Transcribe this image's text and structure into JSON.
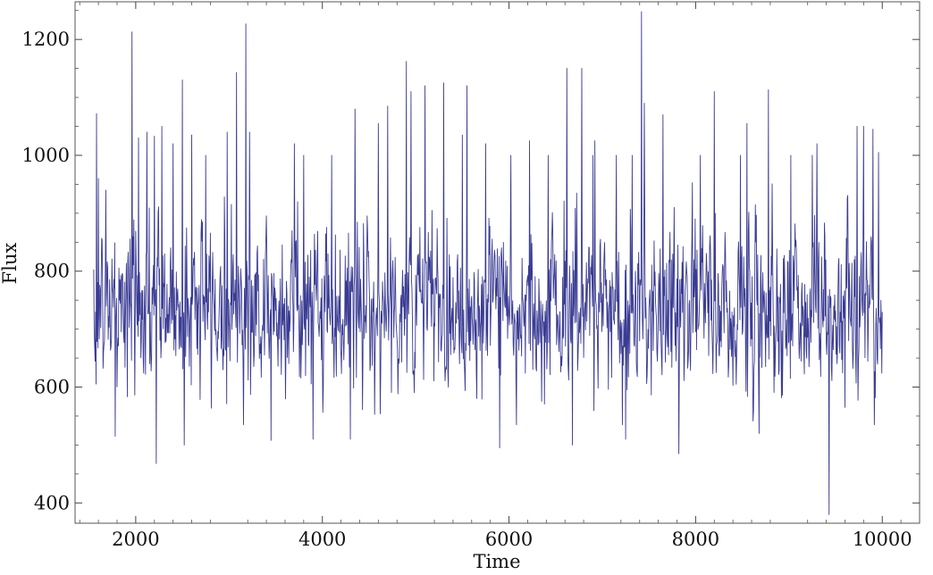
{
  "chart_data": {
    "type": "line",
    "title": "",
    "xlabel": "Time",
    "ylabel": "Flux",
    "xlim": [
      1350,
      10400
    ],
    "ylim": [
      365,
      1265
    ],
    "x_ticks": [
      2000,
      4000,
      6000,
      8000,
      10000
    ],
    "x_tick_labels": [
      "2000",
      "4000",
      "6000",
      "8000",
      "10000"
    ],
    "y_ticks": [
      400,
      600,
      800,
      1000,
      1200
    ],
    "y_tick_labels": [
      "400",
      "600",
      "800",
      "1000",
      "1200"
    ],
    "x_minor_step": 200,
    "y_minor_step": 50,
    "grid": false,
    "legend": "none",
    "line_color": "#3a3c93",
    "series": [
      {
        "x_start": 1550,
        "x_step": 5,
        "x_end": 10000,
        "mean": 740,
        "std": 72,
        "spike_points": [
          [
            1580,
            1072
          ],
          [
            1600,
            960
          ],
          [
            1680,
            940
          ],
          [
            1780,
            515
          ],
          [
            1960,
            1213
          ],
          [
            2030,
            1030
          ],
          [
            2120,
            1040
          ],
          [
            2200,
            1033
          ],
          [
            2220,
            468
          ],
          [
            2280,
            1050
          ],
          [
            2400,
            1020
          ],
          [
            2500,
            1130
          ],
          [
            2520,
            500
          ],
          [
            2600,
            1035
          ],
          [
            2750,
            1000
          ],
          [
            2980,
            1040
          ],
          [
            3080,
            1143
          ],
          [
            3180,
            1227
          ],
          [
            3220,
            1040
          ],
          [
            3450,
            508
          ],
          [
            3700,
            1020
          ],
          [
            3800,
            1000
          ],
          [
            3900,
            510
          ],
          [
            4100,
            1000
          ],
          [
            4300,
            510
          ],
          [
            4350,
            1080
          ],
          [
            4600,
            1055
          ],
          [
            4700,
            1085
          ],
          [
            4900,
            1162
          ],
          [
            4950,
            1110
          ],
          [
            5100,
            1120
          ],
          [
            5300,
            1125
          ],
          [
            5500,
            1035
          ],
          [
            5550,
            1120
          ],
          [
            5750,
            1020
          ],
          [
            5900,
            495
          ],
          [
            6020,
            1000
          ],
          [
            6220,
            1025
          ],
          [
            6420,
            1000
          ],
          [
            6620,
            1150
          ],
          [
            6680,
            500
          ],
          [
            6780,
            1150
          ],
          [
            6900,
            1000
          ],
          [
            6920,
            1025
          ],
          [
            7150,
            1000
          ],
          [
            7250,
            510
          ],
          [
            7320,
            1000
          ],
          [
            7420,
            1248
          ],
          [
            7450,
            1090
          ],
          [
            7650,
            1070
          ],
          [
            7820,
            485
          ],
          [
            8050,
            1000
          ],
          [
            8200,
            1110
          ],
          [
            8480,
            1000
          ],
          [
            8550,
            1055
          ],
          [
            8680,
            520
          ],
          [
            8780,
            1113
          ],
          [
            9020,
            1000
          ],
          [
            9250,
            1000
          ],
          [
            9300,
            1020
          ],
          [
            9430,
            380
          ],
          [
            9600,
            565
          ],
          [
            9730,
            1050
          ],
          [
            9800,
            1050
          ],
          [
            9900,
            1045
          ],
          [
            9960,
            1005
          ]
        ]
      }
    ]
  }
}
